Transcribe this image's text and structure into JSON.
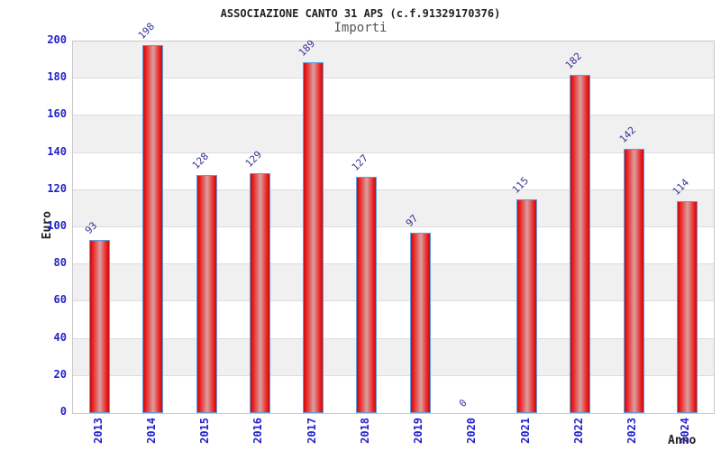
{
  "chart_data": {
    "type": "bar",
    "title": "ASSOCIAZIONE CANTO 31 APS (c.f.91329170376)",
    "subtitle": "Importi",
    "xlabel": "Anno",
    "ylabel": "Euro",
    "categories": [
      "2013",
      "2014",
      "2015",
      "2016",
      "2017",
      "2018",
      "2019",
      "2020",
      "2021",
      "2022",
      "2023",
      "2024"
    ],
    "values": [
      93,
      198,
      128,
      129,
      189,
      127,
      97,
      0,
      115,
      182,
      142,
      114
    ],
    "ylim": [
      0,
      200
    ],
    "ytick_step": 20,
    "yticks": [
      0,
      20,
      40,
      60,
      80,
      100,
      120,
      140,
      160,
      180,
      200
    ],
    "grid": true,
    "legend_position": "none",
    "plot_background": "alternating horizontal bands"
  },
  "colors": {
    "axis_blue": "#2222cc",
    "value_navy": "#333399",
    "title_color": "#222222",
    "subtitle_color": "#555555",
    "axis_title_color": "#222222",
    "band_gray": "#f0f0f0",
    "grid_line": "#dcdcdc",
    "plot_border": "#c9c9c9",
    "bar_main": "#ee2020",
    "bar_dark": "#c50d0d",
    "bar_light": "#d9a0a0",
    "bar_border": "#5d9fe0"
  }
}
